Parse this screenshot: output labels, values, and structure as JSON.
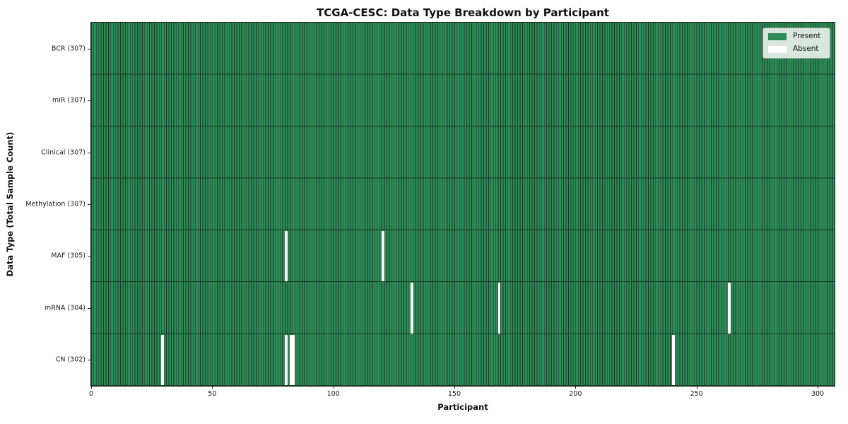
{
  "chart_data": {
    "type": "heatmap",
    "title": "TCGA-CESC: Data Type Breakdown by Participant",
    "xlabel": "Participant",
    "ylabel": "Data Type (Total Sample Count)",
    "x_ticks": [
      0,
      50,
      100,
      150,
      200,
      250,
      300
    ],
    "x_range": [
      0,
      307
    ],
    "n_participants": 307,
    "grid": "cell-edges-only",
    "rows": [
      {
        "name": "BCR",
        "label": "BCR (307)",
        "present_count": 307,
        "absent_participants": []
      },
      {
        "name": "miR",
        "label": "miR (307)",
        "present_count": 307,
        "absent_participants": []
      },
      {
        "name": "Clinical",
        "label": "Clinical (307)",
        "present_count": 307,
        "absent_participants": []
      },
      {
        "name": "Methylation",
        "label": "Methylation (307)",
        "present_count": 307,
        "absent_participants": []
      },
      {
        "name": "MAF",
        "label": "MAF (305)",
        "present_count": 305,
        "absent_participants": [
          80,
          120
        ]
      },
      {
        "name": "mRNA",
        "label": "mRNA (304)",
        "present_count": 304,
        "absent_participants": [
          132,
          168,
          263
        ]
      },
      {
        "name": "CN",
        "label": "CN (302)",
        "present_count": 302,
        "absent_participants": [
          29,
          80,
          82,
          83,
          240
        ]
      }
    ],
    "legend": {
      "position": "upper-right",
      "items": [
        {
          "label": "Present",
          "color": "#2e8b57"
        },
        {
          "label": "Absent",
          "color": "#ffffff"
        }
      ]
    },
    "colors": {
      "present": "#2e8b57",
      "absent": "#ffffff",
      "cell_edge": "#163a26",
      "background": "#ffffff",
      "text": "#111111"
    }
  }
}
